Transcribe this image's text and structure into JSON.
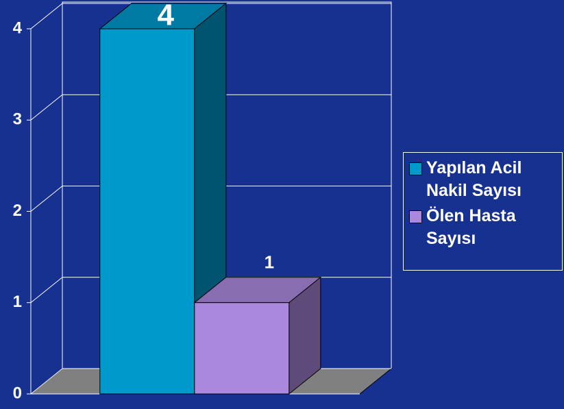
{
  "chart_data": {
    "type": "bar",
    "categories": [
      null
    ],
    "series": [
      {
        "name": "Yapılan Acil Nakil Sayısı",
        "color": "#0099cc",
        "values": [
          4
        ]
      },
      {
        "name": "Ölen Hasta Sayısı",
        "color": "#aa88dd",
        "values": [
          1
        ]
      }
    ],
    "ylim": [
      0,
      4
    ],
    "yticks": [
      0,
      1,
      2,
      3,
      4
    ],
    "grid": true,
    "legend": "right"
  }
}
